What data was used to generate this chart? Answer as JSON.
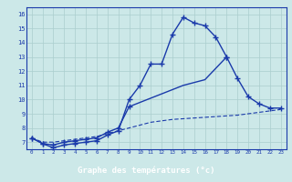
{
  "xlabel": "Graphe des températures (°c)",
  "bg_color": "#cce8e8",
  "line_color": "#1a3aaa",
  "grid_color": "#aacece",
  "label_bg": "#2244aa",
  "label_fg": "#ffffff",
  "xlim": [
    -0.5,
    23.5
  ],
  "ylim": [
    6.5,
    16.5
  ],
  "x_ticks": [
    0,
    1,
    2,
    3,
    4,
    5,
    6,
    7,
    8,
    9,
    10,
    11,
    12,
    13,
    14,
    15,
    16,
    17,
    18,
    19,
    20,
    21,
    22,
    23
  ],
  "y_ticks": [
    7,
    8,
    9,
    10,
    11,
    12,
    13,
    14,
    15,
    16
  ],
  "series1_x": [
    0,
    1,
    2,
    3,
    4,
    5,
    6,
    7,
    8,
    9,
    10,
    11,
    12,
    13,
    14,
    15,
    16,
    17,
    18,
    19,
    20,
    21,
    22,
    23
  ],
  "series1_y": [
    7.3,
    6.9,
    6.6,
    6.8,
    6.9,
    7.0,
    7.1,
    7.5,
    7.8,
    10.0,
    11.0,
    12.5,
    12.5,
    14.6,
    15.8,
    15.4,
    15.2,
    14.4,
    13.0,
    null,
    null,
    null,
    null,
    null
  ],
  "series2_x": [
    0,
    1,
    2,
    3,
    4,
    5,
    6,
    7,
    8,
    9,
    10,
    11,
    12,
    13,
    14,
    15,
    16,
    17,
    18,
    19,
    20,
    21,
    22,
    23
  ],
  "series2_y": [
    7.3,
    6.9,
    6.8,
    7.0,
    7.1,
    7.2,
    7.3,
    7.7,
    8.0,
    9.5,
    null,
    null,
    null,
    null,
    null,
    null,
    null,
    null,
    13.0,
    11.5,
    10.2,
    9.7,
    9.4,
    9.4
  ],
  "series3_x": [
    0,
    1,
    2,
    3,
    4,
    5,
    6,
    7,
    8,
    9,
    10,
    11,
    12,
    13,
    14,
    15,
    16,
    17,
    18,
    19,
    20,
    21,
    22,
    23
  ],
  "series3_y": [
    7.3,
    7.0,
    7.0,
    7.1,
    7.2,
    7.3,
    7.4,
    7.6,
    7.8,
    8.0,
    8.2,
    8.4,
    8.5,
    8.6,
    8.65,
    8.7,
    8.75,
    8.8,
    8.85,
    8.9,
    9.0,
    9.1,
    9.2,
    9.3
  ]
}
